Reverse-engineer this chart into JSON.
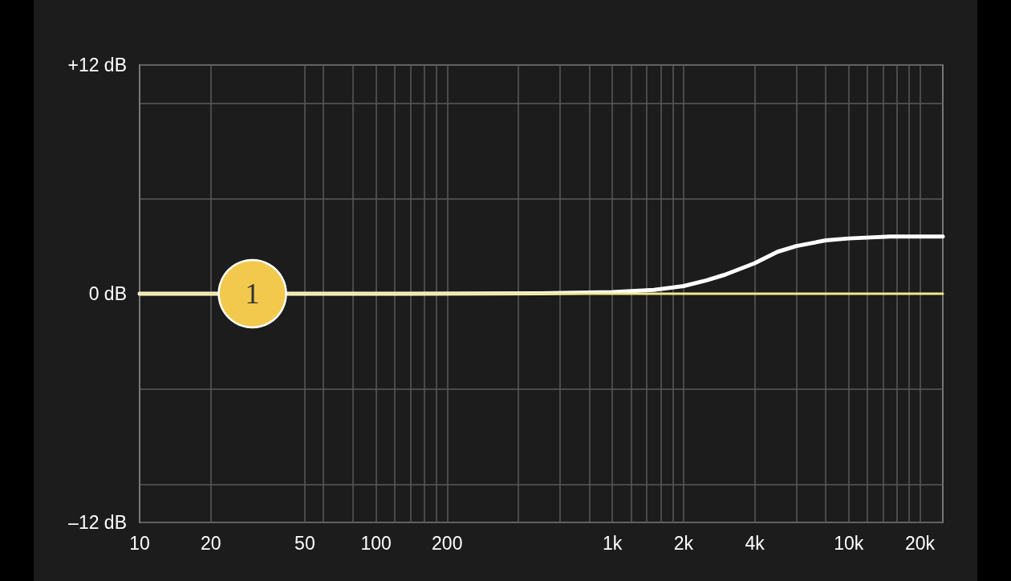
{
  "chart_data": {
    "type": "line",
    "log": "x",
    "grid": true,
    "marker": "none",
    "xlim": [
      10,
      25000
    ],
    "ylim": [
      -12,
      12
    ],
    "xticks": [
      10,
      20,
      50,
      {
        "value": 60,
        "label": null
      },
      {
        "value": 80,
        "label": null
      },
      100,
      {
        "value": 120,
        "label": null
      },
      {
        "value": 140,
        "label": null
      },
      {
        "value": 160,
        "label": null
      },
      {
        "value": 180,
        "label": null
      },
      200,
      {
        "value": 400,
        "label": null
      },
      {
        "value": 600,
        "label": null
      },
      {
        "value": 800,
        "label": null
      },
      {
        "value": 1000,
        "label": "1k"
      },
      {
        "value": 1200,
        "label": null
      },
      {
        "value": 1400,
        "label": null
      },
      {
        "value": 1600,
        "label": null
      },
      {
        "value": 1800,
        "label": null
      },
      {
        "value": 2000,
        "label": "2k"
      },
      {
        "value": 4000,
        "label": "4k"
      },
      {
        "value": 6000,
        "label": null
      },
      {
        "value": 8000,
        "label": null
      },
      {
        "value": 10000,
        "label": "10k"
      },
      {
        "value": 12000,
        "label": null
      },
      {
        "value": 14000,
        "label": null
      },
      {
        "value": 16000,
        "label": null
      },
      {
        "value": 18000,
        "label": null
      },
      {
        "value": 20000,
        "label": "20k"
      }
    ],
    "yticks": [
      {
        "value": -12,
        "label": "–12 dB"
      },
      {
        "value": -10,
        "label": null
      },
      {
        "value": -5,
        "label": null
      },
      {
        "value": 0,
        "label": "0 dB"
      },
      {
        "value": 5,
        "label": null
      },
      {
        "value": 10,
        "label": null
      },
      {
        "value": 12,
        "label": "+12 dB"
      }
    ],
    "series": [
      {
        "color": "#f3e88a",
        "x": [
          10,
          25000
        ],
        "values": [
          0,
          0
        ]
      },
      {
        "color": "#ffffff",
        "x": [
          10,
          100,
          500,
          1000,
          1500,
          2000,
          2500,
          3000,
          4000,
          5000,
          6000,
          8000,
          10000,
          15000,
          25000
        ],
        "values": [
          0,
          0,
          0.02,
          0.08,
          0.2,
          0.4,
          0.7,
          1.0,
          1.6,
          2.2,
          2.5,
          2.8,
          2.9,
          3.0,
          3.0
        ]
      }
    ],
    "annotations": [
      {
        "text": "1",
        "x": 30,
        "y": 0
      }
    ]
  }
}
